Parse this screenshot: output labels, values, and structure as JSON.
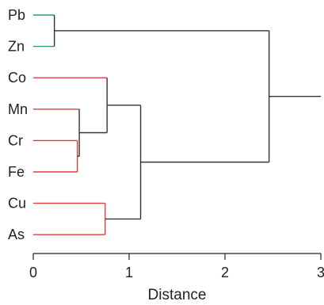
{
  "chart_data": {
    "type": "dendrogram",
    "orientation": "horizontal",
    "xlabel": "Distance",
    "xlim": [
      0,
      3
    ],
    "xticks": [
      0,
      1,
      2,
      3
    ],
    "leaves": [
      "Pb",
      "Zn",
      "Co",
      "Mn",
      "Cr",
      "Fe",
      "Cu",
      "As"
    ],
    "merges": [
      {
        "id": "n1",
        "children": [
          "Cr",
          "Fe"
        ],
        "distance": 0.46
      },
      {
        "id": "n2",
        "children": [
          "Mn",
          "n1"
        ],
        "distance": 0.48
      },
      {
        "id": "n3",
        "children": [
          "Co",
          "n2"
        ],
        "distance": 0.77
      },
      {
        "id": "n4",
        "children": [
          "Cu",
          "As"
        ],
        "distance": 0.75
      },
      {
        "id": "n5",
        "children": [
          "n3",
          "n4"
        ],
        "distance": 1.12
      },
      {
        "id": "n6",
        "children": [
          "Pb",
          "Zn"
        ],
        "distance": 0.22
      },
      {
        "id": "n7",
        "children": [
          "n6",
          "n5"
        ],
        "distance": 2.46
      }
    ],
    "root_stem_end": 3.0,
    "cluster_colors": {
      "Pb": "#2e9e62",
      "Zn": "#2e9e62",
      "Co": "#e03c3c",
      "Mn": "#e03c3c",
      "Cr": "#e03c3c",
      "Fe": "#e03c3c",
      "Cu": "#e03c3c",
      "As": "#e03c3c"
    },
    "link_color": "#333333"
  }
}
